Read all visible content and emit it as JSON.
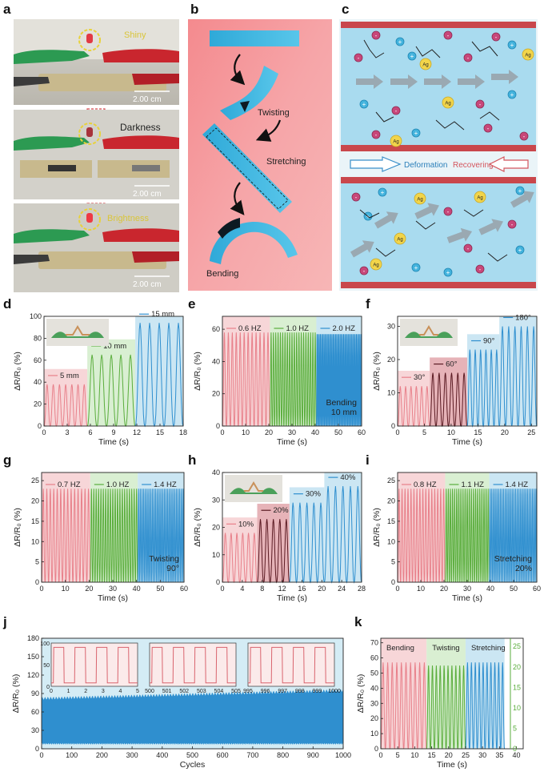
{
  "panel_labels": [
    "a",
    "b",
    "c",
    "d",
    "e",
    "f",
    "g",
    "h",
    "i",
    "j",
    "k"
  ],
  "panel_a": {
    "states": [
      "Shiny",
      "Darkness",
      "Brightness"
    ],
    "scale_bars": [
      "2.00 cm",
      "2.00 cm",
      "2.00 cm"
    ]
  },
  "panel_b": {
    "labels": [
      "Twisting",
      "Stretching",
      "Bending"
    ]
  },
  "panel_c": {
    "deformation": "Deformation",
    "recovering": "Recovering",
    "ion_labels": [
      "Ag",
      "+",
      "-"
    ]
  },
  "colors": {
    "red": "#e8808a",
    "green": "#5aad3c",
    "blue": "#2f8fcf",
    "darkred": "#5a1a22",
    "bg_red": "#f7d6d8",
    "bg_green": "#d9efd2",
    "bg_blue": "#cbe6f3"
  },
  "chart_data": [
    {
      "id": "d",
      "type": "line",
      "xlabel": "Time (s)",
      "ylabel": "ΔR/R₀ (%)",
      "xlim": [
        0,
        18
      ],
      "ylim": [
        0,
        100
      ],
      "xticks": [
        0,
        3,
        6,
        9,
        12,
        15,
        18
      ],
      "yticks": [
        0,
        20,
        40,
        60,
        80,
        100
      ],
      "series": [
        {
          "name": "5 mm",
          "color": "red",
          "x_range": [
            0,
            5.6
          ],
          "peak": 38,
          "cycles": 7
        },
        {
          "name": "10 mm",
          "color": "green",
          "x_range": [
            5.6,
            11.8
          ],
          "peak": 65,
          "cycles": 5
        },
        {
          "name": "15 mm",
          "color": "blue",
          "x_range": [
            11.8,
            18
          ],
          "peak": 94,
          "cycles": 5
        }
      ]
    },
    {
      "id": "e",
      "type": "line",
      "xlabel": "Time (s)",
      "ylabel": "ΔR/R₀ (%)",
      "xlim": [
        0,
        60
      ],
      "ylim": [
        0,
        68
      ],
      "xticks": [
        0,
        10,
        20,
        30,
        40,
        50,
        60
      ],
      "yticks": [
        0,
        20,
        40,
        60
      ],
      "note": "Bending\n10 mm",
      "series": [
        {
          "name": "0.6 HZ",
          "color": "red",
          "x_range": [
            0,
            20.5
          ],
          "peak": 58,
          "cycles": 12
        },
        {
          "name": "1.0 HZ",
          "color": "green",
          "x_range": [
            20.5,
            40.5
          ],
          "peak": 58,
          "cycles": 20
        },
        {
          "name": "2.0 HZ",
          "color": "blue",
          "x_range": [
            40.5,
            60
          ],
          "peak": 57,
          "cycles": 39
        }
      ]
    },
    {
      "id": "f",
      "type": "line",
      "xlabel": "Time (s)",
      "ylabel": "ΔR/R₀ (%)",
      "xlim": [
        0,
        26
      ],
      "ylim": [
        0,
        33
      ],
      "xticks": [
        0,
        5,
        10,
        15,
        20,
        25
      ],
      "yticks": [
        0,
        10,
        20,
        30
      ],
      "series": [
        {
          "name": "30°",
          "color": "red",
          "x_range": [
            0,
            6
          ],
          "peak": 12,
          "cycles": 6
        },
        {
          "name": "60°",
          "color": "darkred",
          "x_range": [
            6,
            13
          ],
          "peak": 16,
          "cycles": 6
        },
        {
          "name": "90°",
          "color": "blue",
          "x_range": [
            13,
            19
          ],
          "peak": 23,
          "cycles": 6
        },
        {
          "name": "180°",
          "color": "blue",
          "x_range": [
            19,
            26
          ],
          "peak": 30,
          "cycles": 6
        }
      ]
    },
    {
      "id": "g",
      "type": "line",
      "xlabel": "Time (s)",
      "ylabel": "ΔR/R₀ (%)",
      "xlim": [
        0,
        60
      ],
      "ylim": [
        0,
        27
      ],
      "xticks": [
        0,
        10,
        20,
        30,
        40,
        50,
        60
      ],
      "yticks": [
        0,
        5,
        10,
        15,
        20,
        25
      ],
      "note": "Twisting\n90°",
      "series": [
        {
          "name": "0.7 HZ",
          "color": "red",
          "x_range": [
            0,
            20.5
          ],
          "peak": 23,
          "cycles": 14
        },
        {
          "name": "1.0 HZ",
          "color": "green",
          "x_range": [
            20.5,
            40.5
          ],
          "peak": 23,
          "cycles": 20
        },
        {
          "name": "1.4 HZ",
          "color": "blue",
          "x_range": [
            40.5,
            60
          ],
          "peak": 23,
          "cycles": 27
        }
      ]
    },
    {
      "id": "h",
      "type": "line",
      "xlabel": "Time (s)",
      "ylabel": "ΔR/R₀ (%)",
      "xlim": [
        0,
        28
      ],
      "ylim": [
        0,
        40
      ],
      "xticks": [
        0,
        4,
        8,
        12,
        16,
        20,
        24,
        28
      ],
      "yticks": [
        0,
        10,
        20,
        30,
        40
      ],
      "series": [
        {
          "name": "10%",
          "color": "red",
          "x_range": [
            0,
            7
          ],
          "peak": 18,
          "cycles": 6
        },
        {
          "name": "20%",
          "color": "darkred",
          "x_range": [
            7,
            13.5
          ],
          "peak": 23,
          "cycles": 5
        },
        {
          "name": "30%",
          "color": "blue",
          "x_range": [
            13.5,
            20.5
          ],
          "peak": 29,
          "cycles": 5
        },
        {
          "name": "40%",
          "color": "blue",
          "x_range": [
            20.5,
            28
          ],
          "peak": 35,
          "cycles": 5
        }
      ]
    },
    {
      "id": "i",
      "type": "line",
      "xlabel": "Time (s)",
      "ylabel": "ΔR/R₀ (%)",
      "xlim": [
        0,
        60
      ],
      "ylim": [
        0,
        27
      ],
      "xticks": [
        0,
        10,
        20,
        30,
        40,
        50,
        60
      ],
      "yticks": [
        0,
        5,
        10,
        15,
        20,
        25
      ],
      "note": "Stretching\n20%",
      "series": [
        {
          "name": "0.8 HZ",
          "color": "red",
          "x_range": [
            0,
            20.5
          ],
          "peak": 23,
          "cycles": 16
        },
        {
          "name": "1.1 HZ",
          "color": "green",
          "x_range": [
            20.5,
            39.5
          ],
          "peak": 23,
          "cycles": 21
        },
        {
          "name": "1.4 HZ",
          "color": "blue",
          "x_range": [
            39.5,
            60
          ],
          "peak": 23,
          "cycles": 28
        }
      ]
    },
    {
      "id": "j",
      "type": "area",
      "xlabel": "Cycles",
      "ylabel": "ΔR/R₀ (%)",
      "xlim": [
        0,
        1000
      ],
      "ylim": [
        0,
        180
      ],
      "xticks": [
        0,
        100,
        200,
        300,
        400,
        500,
        600,
        700,
        800,
        900,
        1000
      ],
      "yticks": [
        0,
        30,
        60,
        90,
        120,
        150,
        180
      ],
      "band": {
        "upper_start": 82,
        "upper_end": 95,
        "lower": 8
      },
      "insets": [
        {
          "xticks": [
            0,
            1,
            2,
            3,
            4,
            5
          ],
          "yticks": [
            0,
            50,
            100
          ],
          "ylim": [
            0,
            100
          ],
          "peak": 90,
          "cycles": 4
        },
        {
          "xticks": [
            500,
            501,
            502,
            503,
            504,
            505
          ],
          "yticks": [],
          "ylim": [
            0,
            100
          ],
          "peak": 90,
          "cycles": 4
        },
        {
          "xticks": [
            995,
            996,
            997,
            998,
            999,
            1000
          ],
          "yticks": [],
          "ylim": [
            0,
            100
          ],
          "peak": 90,
          "cycles": 4
        }
      ]
    },
    {
      "id": "k",
      "type": "line",
      "xlabel": "Time (s)",
      "ylabel": "ΔR/R₀ (%)",
      "xlim": [
        0,
        42
      ],
      "ylim": [
        0,
        73
      ],
      "xticks": [
        0,
        5,
        10,
        15,
        20,
        25,
        30,
        35,
        40
      ],
      "yticks": [
        0,
        10,
        20,
        30,
        40,
        50,
        60,
        70
      ],
      "y2ticks": [
        0,
        5,
        10,
        15,
        20,
        25
      ],
      "series": [
        {
          "name": "Bending",
          "color": "red",
          "x_range": [
            0,
            13.5
          ],
          "peak": 57,
          "cycles": 10
        },
        {
          "name": "Twisting",
          "color": "green",
          "x_range": [
            13.5,
            25
          ],
          "peak": 55,
          "cycles": 10
        },
        {
          "name": "Stretching",
          "color": "blue",
          "x_range": [
            25,
            36.5
          ],
          "peak": 57,
          "cycles": 10
        }
      ]
    }
  ]
}
